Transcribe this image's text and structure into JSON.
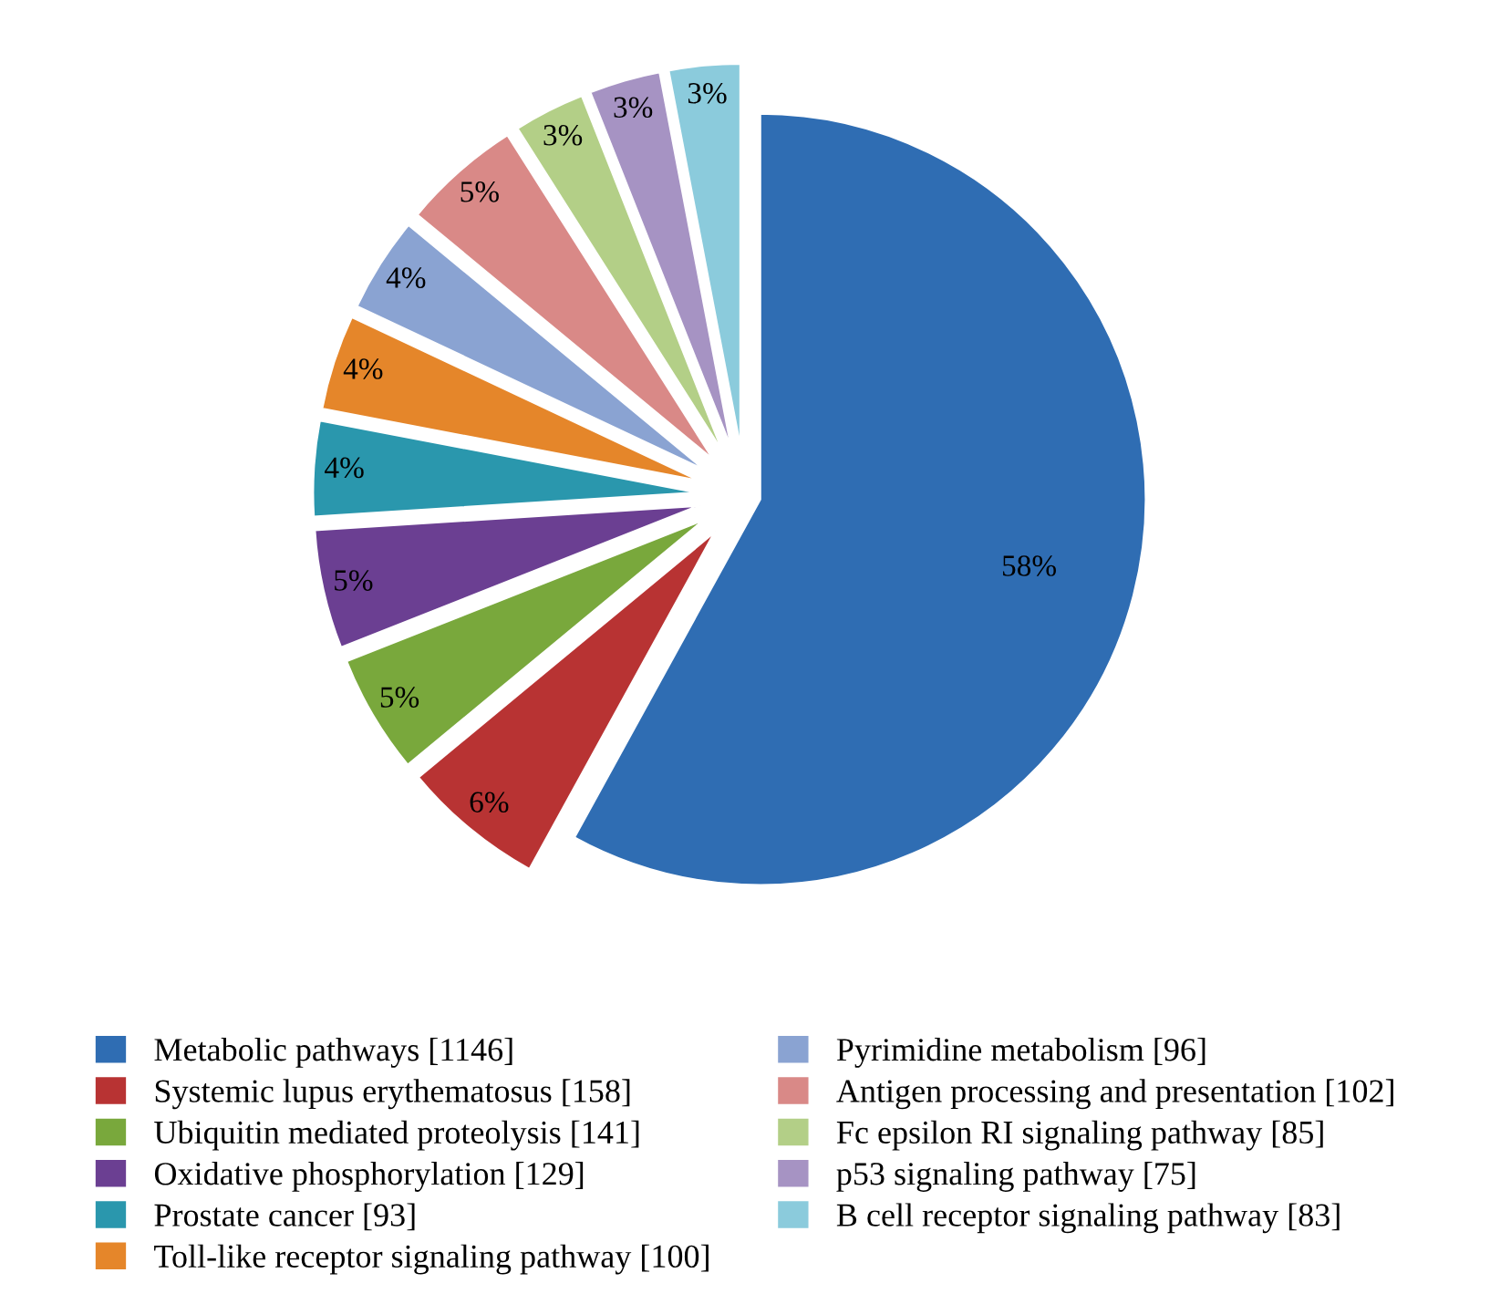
{
  "chart_data": {
    "type": "pie",
    "categories": [
      "Metabolic pathways [1146]",
      "Systemic lupus erythematosus [158]",
      "Ubiquitin mediated proteolysis [141]",
      "Oxidative phosphorylation [129]",
      "Prostate cancer [93]",
      "Toll-like receptor signaling pathway [100]",
      "Pyrimidine metabolism [96]",
      "Antigen processing and presentation [102]",
      "Fc epsilon RI signaling pathway [85]",
      "p53 signaling pathway [75]",
      "B cell receptor signaling pathway [83]"
    ],
    "values": [
      58,
      6,
      5,
      5,
      4,
      4,
      4,
      5,
      3,
      3,
      3
    ],
    "value_labels": [
      "58%",
      "6%",
      "5%",
      "5%",
      "4%",
      "4%",
      "4%",
      "5%",
      "3%",
      "3%",
      "3%"
    ],
    "colors": [
      "#2f6db3",
      "#b83333",
      "#79a83c",
      "#6b3f92",
      "#2a97ad",
      "#e5862a",
      "#8aa3d2",
      "#d98987",
      "#b3cf87",
      "#a693c3",
      "#8bcbdc"
    ],
    "legend": "bottom"
  }
}
